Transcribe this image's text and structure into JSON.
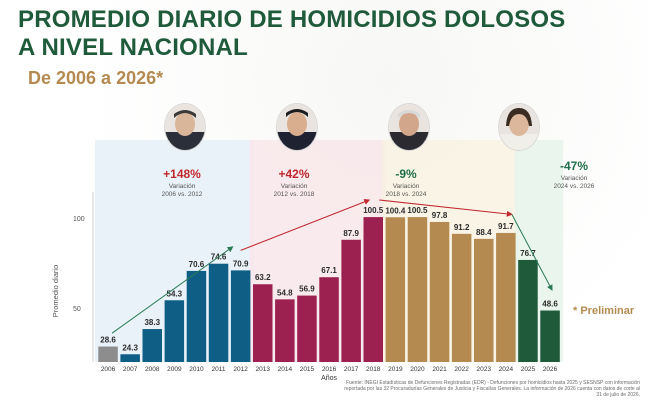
{
  "header": {
    "title": "PROMEDIO DIARIO DE HOMICIDIOS DOLOSOS A NIVEL NACIONAL",
    "subtitle": "De 2006 a 2026*"
  },
  "annotations": [
    {
      "pct": "+148%",
      "pct_color": "#c0282e",
      "label": "Variación",
      "range": "2006 vs. 2012"
    },
    {
      "pct": "+42%",
      "pct_color": "#c0282e",
      "label": "Variación",
      "range": "2012 vs. 2018"
    },
    {
      "pct": "-9%",
      "pct_color": "#1f6f4a",
      "label": "Variación",
      "range": "2018 vs. 2024"
    },
    {
      "pct": "-47%",
      "pct_color": "#1f6f4a",
      "label": "Variación",
      "range": "2024 vs. 2026"
    }
  ],
  "footnote": "* Preliminar",
  "source": "Fuente: INEGI Estadísticas de Defunciones Registradas (EDR) - Defunciones por homicidios hasta 2025 y SESNSP con información reportada por las 32 Procuradurías Generales de Justicia y Fiscalías Generales. La información de 2026 cuenta con datos de corte al 31 de julio de 2026.",
  "colors": {
    "gray": "#8d8d8d",
    "blue": "#0f5e85",
    "maroon": "#9c2150",
    "gold": "#b48a50",
    "green": "#1f5a3a",
    "arrow_green": "#2a7a55",
    "arrow_red": "#c0282e"
  },
  "chart_data": {
    "type": "bar",
    "xlabel": "Años",
    "ylabel": "Promedio diario",
    "categories": [
      "2006",
      "2007",
      "2008",
      "2009",
      "2010",
      "2011",
      "2012",
      "2013",
      "2014",
      "2015",
      "2016",
      "2017",
      "2018",
      "2019",
      "2020",
      "2021",
      "2022",
      "2023",
      "2024",
      "2025",
      "2026"
    ],
    "values": [
      28.6,
      24.3,
      38.3,
      54.3,
      70.6,
      74.6,
      70.9,
      63.2,
      54.8,
      56.9,
      67.1,
      87.9,
      100.5,
      100.4,
      100.5,
      97.8,
      91.2,
      88.4,
      91.7,
      76.7,
      48.6
    ],
    "value_labels": [
      "28.6",
      "24.3",
      "38.3",
      "54.3",
      "70.6",
      "74.6",
      "70.9",
      "63.2",
      "54.8",
      "56.9",
      "67.1",
      "87.9",
      "100.5",
      "100.4",
      "100.5",
      "97.8",
      "91.2",
      "88.4",
      "91.7",
      "76.7",
      "48.6"
    ],
    "bar_colors": [
      "gray",
      "blue",
      "blue",
      "blue",
      "blue",
      "blue",
      "blue",
      "maroon",
      "maroon",
      "maroon",
      "maroon",
      "maroon",
      "maroon",
      "gold",
      "gold",
      "gold",
      "gold",
      "gold",
      "gold",
      "green",
      "green"
    ],
    "yticks": [
      50,
      100
    ],
    "ylim": [
      20,
      110
    ],
    "grid": false
  }
}
